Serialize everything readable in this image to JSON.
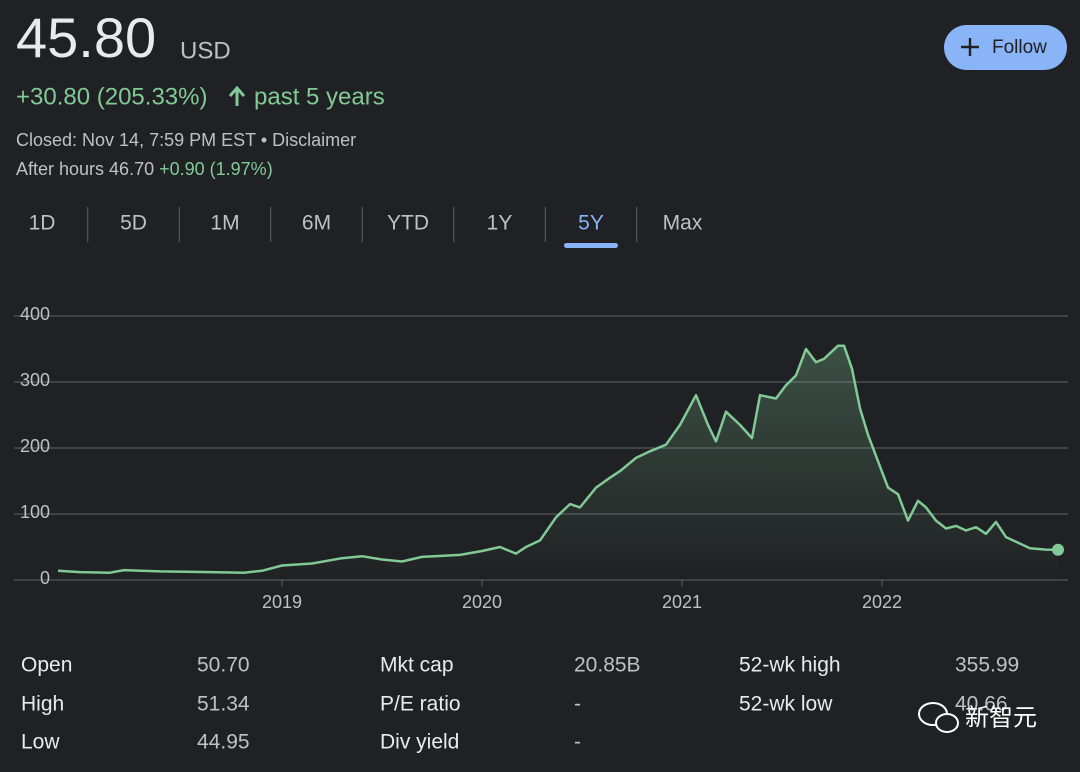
{
  "header": {
    "price": "45.80",
    "currency": "USD",
    "change": "+30.80 (205.33%)",
    "period": "past 5 years",
    "closed": "Closed: Nov 14, 7:59 PM EST",
    "separator": "•",
    "disclaimer": "Disclaimer",
    "after_hours": "After hours 46.70",
    "after_hours_change": "+0.90 (1.97%)",
    "follow": "Follow"
  },
  "ranges": {
    "items": [
      "1D",
      "5D",
      "1M",
      "6M",
      "YTD",
      "1Y",
      "5Y",
      "Max"
    ],
    "selected": "5Y"
  },
  "chart_data": {
    "type": "line",
    "color": "#81c995",
    "grid": true,
    "xlim": [
      2017.88,
      2022.89
    ],
    "xticks": [
      2019,
      2020,
      2021,
      2022
    ],
    "ylim": [
      0,
      400
    ],
    "yticks": [
      0,
      100,
      200,
      300,
      400
    ],
    "series": [
      {
        "name": "Price",
        "color": "#81c995",
        "x": [
          2017.88,
          2017.99,
          2018.14,
          2018.21,
          2018.39,
          2018.64,
          2018.81,
          2018.9,
          2019.0,
          2019.15,
          2019.3,
          2019.4,
          2019.5,
          2019.6,
          2019.7,
          2019.89,
          2020.0,
          2020.09,
          2020.17,
          2020.22,
          2020.29,
          2020.37,
          2020.44,
          2020.49,
          2020.57,
          2020.64,
          2020.69,
          2020.77,
          2020.84,
          2020.92,
          2020.99,
          2021.07,
          2021.13,
          2021.17,
          2021.22,
          2021.29,
          2021.35,
          2021.39,
          2021.47,
          2021.52,
          2021.57,
          2021.62,
          2021.67,
          2021.71,
          2021.78,
          2021.81,
          2021.85,
          2021.89,
          2021.93,
          2021.98,
          2022.03,
          2022.08,
          2022.13,
          2022.18,
          2022.22,
          2022.27,
          2022.32,
          2022.37,
          2022.42,
          2022.47,
          2022.52,
          2022.57,
          2022.62,
          2022.67,
          2022.74,
          2022.82,
          2022.88
        ],
        "values": [
          14,
          12,
          11,
          15,
          13,
          12,
          11,
          14,
          22,
          25,
          33,
          36,
          31,
          28,
          35,
          38,
          44,
          50,
          40,
          50,
          60,
          95,
          115,
          110,
          140,
          155,
          165,
          185,
          195,
          205,
          235,
          280,
          235,
          210,
          255,
          235,
          215,
          280,
          275,
          295,
          310,
          350,
          330,
          335,
          355,
          355,
          320,
          260,
          220,
          180,
          140,
          130,
          90,
          120,
          110,
          90,
          78,
          82,
          75,
          80,
          70,
          88,
          65,
          58,
          48,
          46,
          45.8
        ]
      }
    ]
  },
  "stats": {
    "rows": [
      [
        "Open",
        "50.70",
        "Mkt cap",
        "20.85B",
        "52-wk high",
        "355.99"
      ],
      [
        "High",
        "51.34",
        "P/E ratio",
        "-",
        "52-wk low",
        "40.66"
      ],
      [
        "Low",
        "44.95",
        "Div yield",
        "-",
        "",
        ""
      ]
    ]
  },
  "watermark": "新智元"
}
